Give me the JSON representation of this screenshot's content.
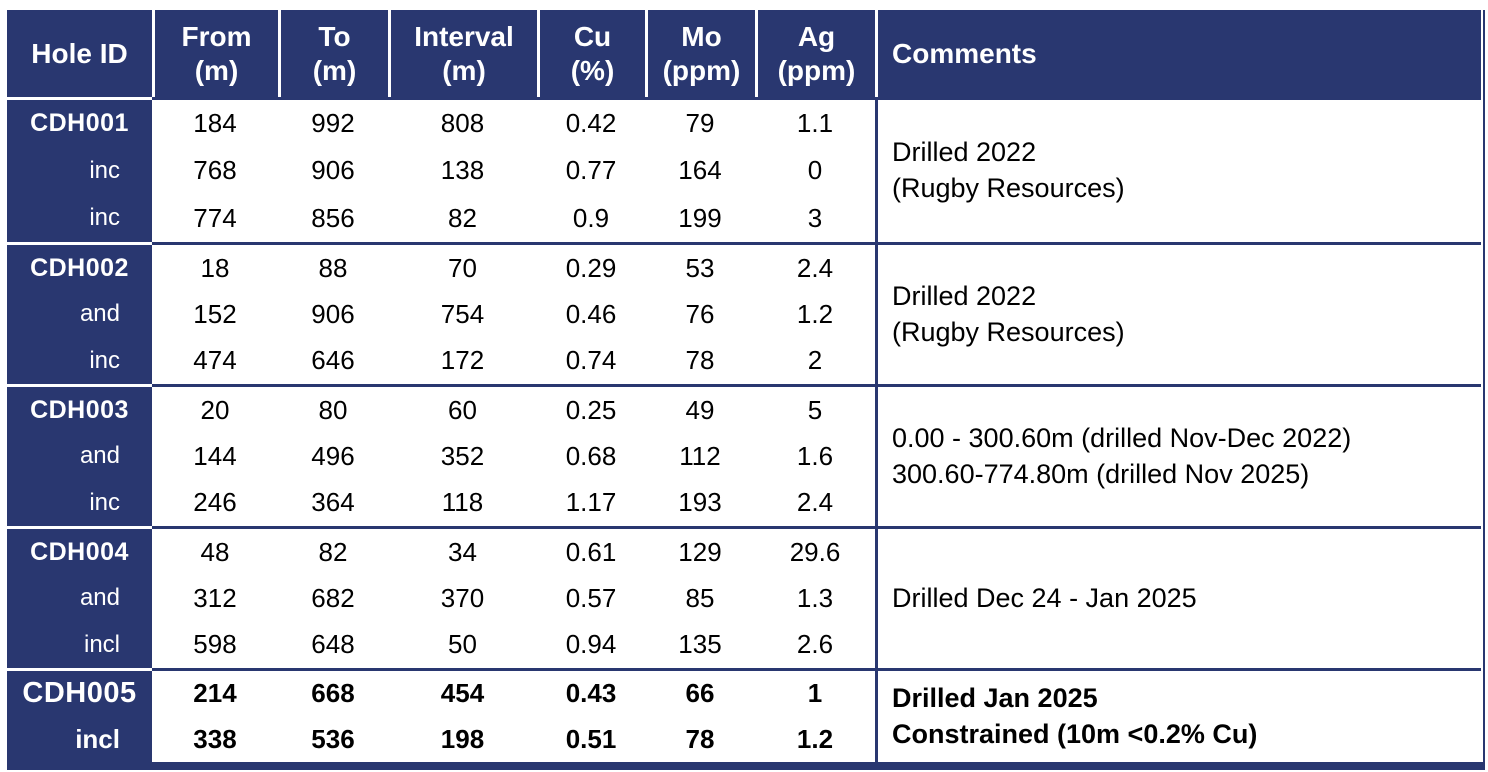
{
  "colors": {
    "accent_navy": "#293770",
    "header_text": "#ffffff",
    "body_text": "#000000"
  },
  "table": {
    "headers": [
      {
        "line1": "Hole ID",
        "line2": ""
      },
      {
        "line1": "From",
        "line2": "(m)"
      },
      {
        "line1": "To",
        "line2": "(m)"
      },
      {
        "line1": "Interval",
        "line2": "(m)"
      },
      {
        "line1": "Cu",
        "line2": "(%)"
      },
      {
        "line1": "Mo",
        "line2": "(ppm)"
      },
      {
        "line1": "Ag",
        "line2": "(ppm)"
      },
      {
        "line1": "Comments",
        "line2": ""
      }
    ],
    "blocks": [
      {
        "hole_id": "CDH001",
        "bold": false,
        "rows": [
          {
            "qualifier": "",
            "from": "184",
            "to": "992",
            "interval": "808",
            "cu": "0.42",
            "mo": "79",
            "ag": "1.1"
          },
          {
            "qualifier": "inc",
            "from": "768",
            "to": "906",
            "interval": "138",
            "cu": "0.77",
            "mo": "164",
            "ag": "0"
          },
          {
            "qualifier": "inc",
            "from": "774",
            "to": "856",
            "interval": "82",
            "cu": "0.9",
            "mo": "199",
            "ag": "3"
          }
        ],
        "comment_lines": [
          "Drilled 2022",
          "(Rugby Resources)"
        ]
      },
      {
        "hole_id": "CDH002",
        "bold": false,
        "rows": [
          {
            "qualifier": "",
            "from": "18",
            "to": "88",
            "interval": "70",
            "cu": "0.29",
            "mo": "53",
            "ag": "2.4"
          },
          {
            "qualifier": "and",
            "from": "152",
            "to": "906",
            "interval": "754",
            "cu": "0.46",
            "mo": "76",
            "ag": "1.2"
          },
          {
            "qualifier": "inc",
            "from": "474",
            "to": "646",
            "interval": "172",
            "cu": "0.74",
            "mo": "78",
            "ag": "2"
          }
        ],
        "comment_lines": [
          "Drilled 2022",
          "(Rugby Resources)"
        ]
      },
      {
        "hole_id": "CDH003",
        "bold": false,
        "rows": [
          {
            "qualifier": "",
            "from": "20",
            "to": "80",
            "interval": "60",
            "cu": "0.25",
            "mo": "49",
            "ag": "5"
          },
          {
            "qualifier": "and",
            "from": "144",
            "to": "496",
            "interval": "352",
            "cu": "0.68",
            "mo": "112",
            "ag": "1.6"
          },
          {
            "qualifier": "inc",
            "from": "246",
            "to": "364",
            "interval": "118",
            "cu": "1.17",
            "mo": "193",
            "ag": "2.4"
          }
        ],
        "comment_lines": [
          "0.00 - 300.60m (drilled Nov-Dec 2022)",
          "300.60-774.80m (drilled Nov 2025)"
        ]
      },
      {
        "hole_id": "CDH004",
        "bold": false,
        "rows": [
          {
            "qualifier": "",
            "from": "48",
            "to": "82",
            "interval": "34",
            "cu": "0.61",
            "mo": "129",
            "ag": "29.6"
          },
          {
            "qualifier": "and",
            "from": "312",
            "to": "682",
            "interval": "370",
            "cu": "0.57",
            "mo": "85",
            "ag": "1.3"
          },
          {
            "qualifier": "incl",
            "from": "598",
            "to": "648",
            "interval": "50",
            "cu": "0.94",
            "mo": "135",
            "ag": "2.6"
          }
        ],
        "comment_lines": [
          "Drilled Dec 24 - Jan 2025"
        ]
      },
      {
        "hole_id": "CDH005",
        "bold": true,
        "rows": [
          {
            "qualifier": "",
            "from": "214",
            "to": "668",
            "interval": "454",
            "cu": "0.43",
            "mo": "66",
            "ag": "1"
          },
          {
            "qualifier": "incl",
            "from": "338",
            "to": "536",
            "interval": "198",
            "cu": "0.51",
            "mo": "78",
            "ag": "1.2"
          }
        ],
        "comment_lines": [
          "Drilled Jan 2025",
          "Constrained (10m <0.2% Cu)"
        ]
      }
    ]
  }
}
